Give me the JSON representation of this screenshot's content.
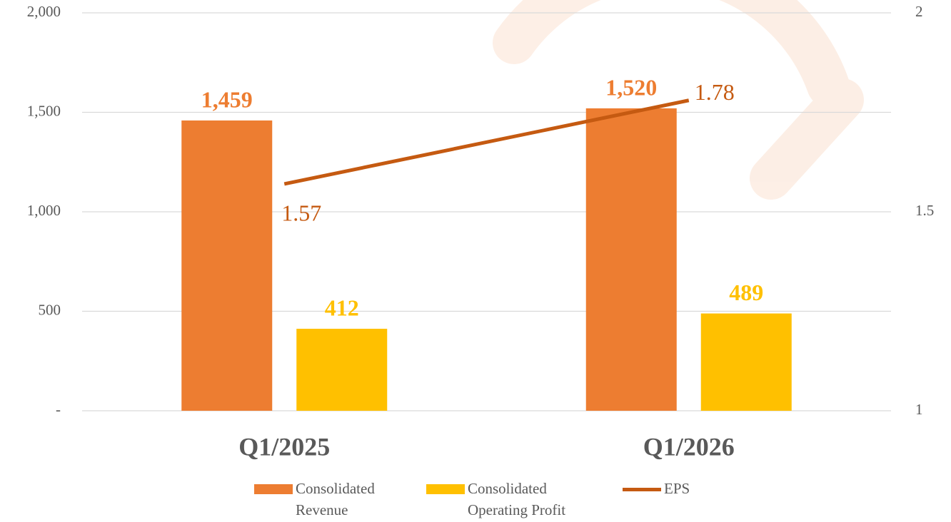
{
  "chart_data": {
    "type": "bar-line",
    "categories": [
      "Q1/2025",
      "Q1/2026"
    ],
    "series": [
      {
        "name": "Consolidated Revenue",
        "type": "bar",
        "color": "#ED7D31",
        "values": [
          1459,
          1520
        ],
        "value_labels": [
          "1,459",
          "1,520"
        ]
      },
      {
        "name": "Consolidated Operating Profit",
        "type": "bar",
        "color": "#FFC000",
        "values": [
          412,
          489
        ]
      },
      {
        "name": "EPS",
        "type": "line",
        "axis": "y2",
        "color": "#C55A11",
        "values": [
          1.57,
          1.78
        ]
      }
    ],
    "ylim": [
      0,
      2000
    ],
    "yticks": [
      {
        "value": 0,
        "label": "-"
      },
      500,
      {
        "value": 1000,
        "label": "1,000"
      },
      {
        "value": 1500,
        "label": "1,500"
      },
      {
        "value": 2000,
        "label": "2,000"
      }
    ],
    "y2lim": [
      1,
      2
    ],
    "y2ticks": [
      1,
      1.5,
      2
    ],
    "grid": true,
    "legend": "bottom"
  }
}
